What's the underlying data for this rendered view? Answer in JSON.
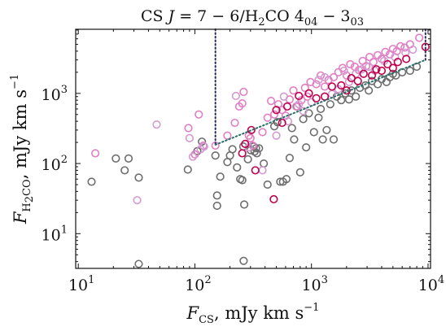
{
  "chart_data": {
    "type": "scatter",
    "title": {
      "prefix": "CS ",
      "j_symbol": "J",
      "transition_cs": " = 7 − 6/H",
      "h2co_subscript": "2",
      "molecule": "CO 4",
      "upper_level": "04",
      "dash": " − 3",
      "lower_level": "03"
    },
    "xlabel": {
      "symbol": "F",
      "subscript": "CS",
      "unit": ", mJy km s",
      "exponent": "−1"
    },
    "ylabel": {
      "symbol": "F",
      "subscript": "H",
      "subscript_2": "2",
      "subscript_tail": "CO",
      "unit": ", mJy km s",
      "exponent": "−1"
    },
    "x_scale": "log",
    "y_scale": "log",
    "xlim": [
      9.5,
      10500
    ],
    "ylim": [
      3.2,
      8200
    ],
    "x_ticks": [
      {
        "value": 10,
        "base": "10",
        "exp": "1"
      },
      {
        "value": 100,
        "base": "10",
        "exp": "2"
      },
      {
        "value": 1000,
        "base": "10",
        "exp": "3"
      },
      {
        "value": 10000,
        "base": "10",
        "exp": "4"
      }
    ],
    "y_ticks": [
      {
        "value": 10,
        "base": "10",
        "exp": "1"
      },
      {
        "value": 100,
        "base": "10",
        "exp": "2"
      },
      {
        "value": 1000,
        "base": "10",
        "exp": "3"
      }
    ],
    "grid": false,
    "colors": {
      "gray": "#6e6e6e",
      "light_pink": "#e27ec4",
      "orchid": "#d39ad0",
      "crimson": "#c0004c",
      "vertical_line": "#2a2a5a",
      "diagonal_line": "#2a7068"
    },
    "series": [
      {
        "color_key": "gray",
        "points": [
          [
            13,
            55
          ],
          [
            21,
            118
          ],
          [
            25,
            80
          ],
          [
            27,
            118
          ],
          [
            33,
            63
          ],
          [
            33,
            3.7
          ],
          [
            87,
            82
          ],
          [
            105,
            150
          ],
          [
            115,
            205
          ],
          [
            150,
            130
          ],
          [
            155,
            25
          ],
          [
            155,
            35
          ],
          [
            165,
            65
          ],
          [
            190,
            105
          ],
          [
            200,
            130
          ],
          [
            210,
            160
          ],
          [
            230,
            88
          ],
          [
            245,
            60
          ],
          [
            255,
            58
          ],
          [
            260,
            175
          ],
          [
            262,
            4.1
          ],
          [
            265,
            26
          ],
          [
            285,
            115
          ],
          [
            300,
            155
          ],
          [
            320,
            175
          ],
          [
            325,
            148
          ],
          [
            335,
            165
          ],
          [
            340,
            140
          ],
          [
            355,
            165
          ],
          [
            390,
            100
          ],
          [
            420,
            50
          ],
          [
            480,
            340
          ],
          [
            510,
            390
          ],
          [
            540,
            55
          ],
          [
            570,
            55
          ],
          [
            610,
            60
          ],
          [
            650,
            120
          ],
          [
            680,
            320
          ],
          [
            710,
            220
          ],
          [
            750,
            650
          ],
          [
            800,
            75
          ],
          [
            850,
            430
          ],
          [
            900,
            170
          ],
          [
            950,
            520
          ],
          [
            1050,
            280
          ],
          [
            1150,
            450
          ],
          [
            1200,
            600
          ],
          [
            1250,
            220
          ],
          [
            1350,
            300
          ],
          [
            1450,
            700
          ],
          [
            1550,
            220
          ],
          [
            1650,
            900
          ],
          [
            1800,
            800
          ],
          [
            1950,
            1000
          ],
          [
            2100,
            820
          ],
          [
            2200,
            1100
          ],
          [
            2400,
            900
          ],
          [
            2600,
            1200
          ],
          [
            2900,
            1300
          ],
          [
            3100,
            1100
          ],
          [
            3300,
            1500
          ],
          [
            3700,
            1350
          ],
          [
            4000,
            1600
          ],
          [
            4400,
            1450
          ],
          [
            4700,
            1700
          ],
          [
            5000,
            1900
          ],
          [
            5300,
            1800
          ],
          [
            6000,
            2000
          ],
          [
            7000,
            2100
          ],
          [
            8000,
            2400
          ]
        ]
      },
      {
        "color_key": "light_pink",
        "points": [
          [
            14,
            140
          ],
          [
            88,
            320
          ],
          [
            100,
            135
          ],
          [
            108,
            500
          ],
          [
            118,
            180
          ],
          [
            150,
            180
          ],
          [
            190,
            250
          ],
          [
            220,
            380
          ],
          [
            240,
            650
          ],
          [
            255,
            720
          ],
          [
            262,
            1050
          ],
          [
            290,
            250
          ],
          [
            300,
            230
          ],
          [
            315,
            180
          ],
          [
            380,
            280
          ],
          [
            420,
            450
          ],
          [
            450,
            780
          ],
          [
            480,
            500
          ],
          [
            520,
            700
          ],
          [
            560,
            580
          ],
          [
            600,
            480
          ],
          [
            650,
            820
          ],
          [
            700,
            1100
          ],
          [
            740,
            650
          ],
          [
            820,
            800
          ],
          [
            880,
            1200
          ],
          [
            920,
            900
          ],
          [
            980,
            1450
          ],
          [
            1100,
            1350
          ],
          [
            1200,
            1800
          ],
          [
            1300,
            1250
          ],
          [
            1400,
            1550
          ],
          [
            1550,
            1700
          ],
          [
            1700,
            2000
          ],
          [
            1850,
            2300
          ],
          [
            2000,
            1800
          ],
          [
            2150,
            2600
          ],
          [
            2350,
            2400
          ],
          [
            2550,
            2150
          ],
          [
            2750,
            2900
          ],
          [
            2950,
            2450
          ],
          [
            3150,
            3300
          ],
          [
            3400,
            2800
          ],
          [
            3700,
            3500
          ],
          [
            4000,
            3100
          ],
          [
            4300,
            3900
          ],
          [
            4700,
            3600
          ],
          [
            5000,
            4300
          ],
          [
            5400,
            4000
          ],
          [
            5800,
            4700
          ],
          [
            6300,
            4500
          ],
          [
            7000,
            5000
          ],
          [
            8400,
            6200
          ]
        ]
      },
      {
        "color_key": "orchid",
        "points": [
          [
            32,
            30
          ],
          [
            47,
            360
          ],
          [
            90,
            230
          ],
          [
            96,
            125
          ],
          [
            112,
            160
          ],
          [
            120,
            175
          ],
          [
            225,
            920
          ],
          [
            290,
            170
          ],
          [
            380,
            80
          ],
          [
            500,
            250
          ],
          [
            580,
            900
          ],
          [
            630,
            400
          ],
          [
            780,
            700
          ],
          [
            850,
            560
          ],
          [
            1000,
            750
          ],
          [
            1150,
            1550
          ],
          [
            1300,
            1700
          ],
          [
            1500,
            980
          ],
          [
            1700,
            1150
          ],
          [
            1900,
            2100
          ],
          [
            2100,
            1450
          ],
          [
            2400,
            1900
          ],
          [
            2700,
            2200
          ],
          [
            3100,
            2400
          ],
          [
            3500,
            2100
          ],
          [
            4200,
            2900
          ],
          [
            5200,
            3300
          ],
          [
            6400,
            3800
          ],
          [
            7400,
            4200
          ]
        ]
      },
      {
        "color_key": "crimson",
        "points": [
          [
            255,
            140
          ],
          [
            270,
            190
          ],
          [
            305,
            300
          ],
          [
            330,
            80
          ],
          [
            475,
            31
          ],
          [
            500,
            580
          ],
          [
            560,
            380
          ],
          [
            620,
            650
          ],
          [
            780,
            920
          ],
          [
            950,
            1000
          ],
          [
            1100,
            850
          ],
          [
            1300,
            900
          ],
          [
            1500,
            1250
          ],
          [
            1800,
            1300
          ],
          [
            2000,
            1100
          ],
          [
            2200,
            1650
          ],
          [
            2500,
            1500
          ],
          [
            2800,
            1900
          ],
          [
            3300,
            1800
          ],
          [
            3600,
            2200
          ],
          [
            4000,
            2100
          ],
          [
            4500,
            2600
          ],
          [
            5000,
            2300
          ],
          [
            5500,
            2800
          ],
          [
            6500,
            3100
          ],
          [
            9500,
            4600
          ]
        ]
      }
    ],
    "lines": [
      {
        "color_key": "vertical_line",
        "style": "dotted",
        "points": [
          [
            150,
            8200
          ],
          [
            150,
            185
          ]
        ]
      },
      {
        "color_key": "diagonal_line",
        "style": "dotted",
        "points": [
          [
            150,
            185
          ],
          [
            9500,
            3000
          ]
        ]
      },
      {
        "color_key": "vertical_line",
        "style": "dotted",
        "points": [
          [
            9500,
            3000
          ],
          [
            9500,
            8200
          ]
        ]
      }
    ]
  }
}
